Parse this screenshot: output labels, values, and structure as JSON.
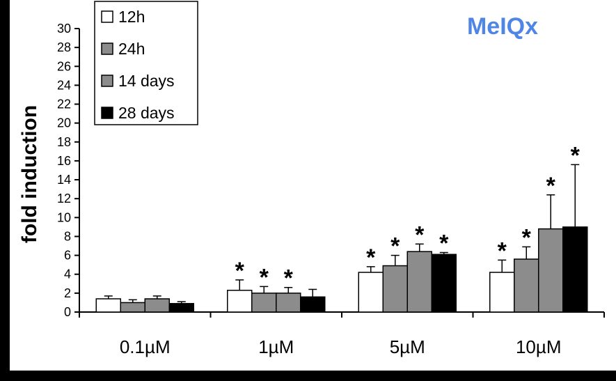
{
  "chart_data": {
    "type": "bar",
    "title": "MeIQx",
    "title_color": "#4f86e6",
    "ylabel": "fold induction",
    "xlabel": "",
    "ylim": [
      0,
      30
    ],
    "y_ticks": [
      "0",
      "2",
      "4",
      "6",
      "8",
      "10",
      "12",
      "14",
      "16",
      "18",
      "20",
      "22",
      "24",
      "26",
      "28",
      "30"
    ],
    "categories": [
      "0.1µM",
      "1µM",
      "5µM",
      "10µM"
    ],
    "legend_position": "top-left",
    "series": [
      {
        "name": "12h",
        "color": "#ffffff",
        "values": [
          1.4,
          2.3,
          4.2,
          4.2
        ],
        "errors": [
          0.3,
          1.1,
          0.6,
          1.3
        ],
        "significant": [
          false,
          true,
          true,
          true
        ]
      },
      {
        "name": "24h",
        "color": "#8c8c8c",
        "values": [
          1.0,
          2.0,
          4.9,
          5.6
        ],
        "errors": [
          0.3,
          0.7,
          1.1,
          1.3
        ],
        "significant": [
          false,
          true,
          true,
          true
        ]
      },
      {
        "name": "14 days",
        "color": "#8c8c8c",
        "values": [
          1.4,
          2.0,
          6.4,
          8.8
        ],
        "errors": [
          0.3,
          0.6,
          0.8,
          3.6
        ],
        "significant": [
          false,
          true,
          true,
          true
        ]
      },
      {
        "name": "28 days",
        "color": "#000000",
        "values": [
          0.9,
          1.6,
          6.1,
          9.0
        ],
        "errors": [
          0.2,
          0.8,
          0.2,
          6.6
        ],
        "significant": [
          false,
          false,
          true,
          true
        ]
      }
    ],
    "significance_marker": "*"
  }
}
